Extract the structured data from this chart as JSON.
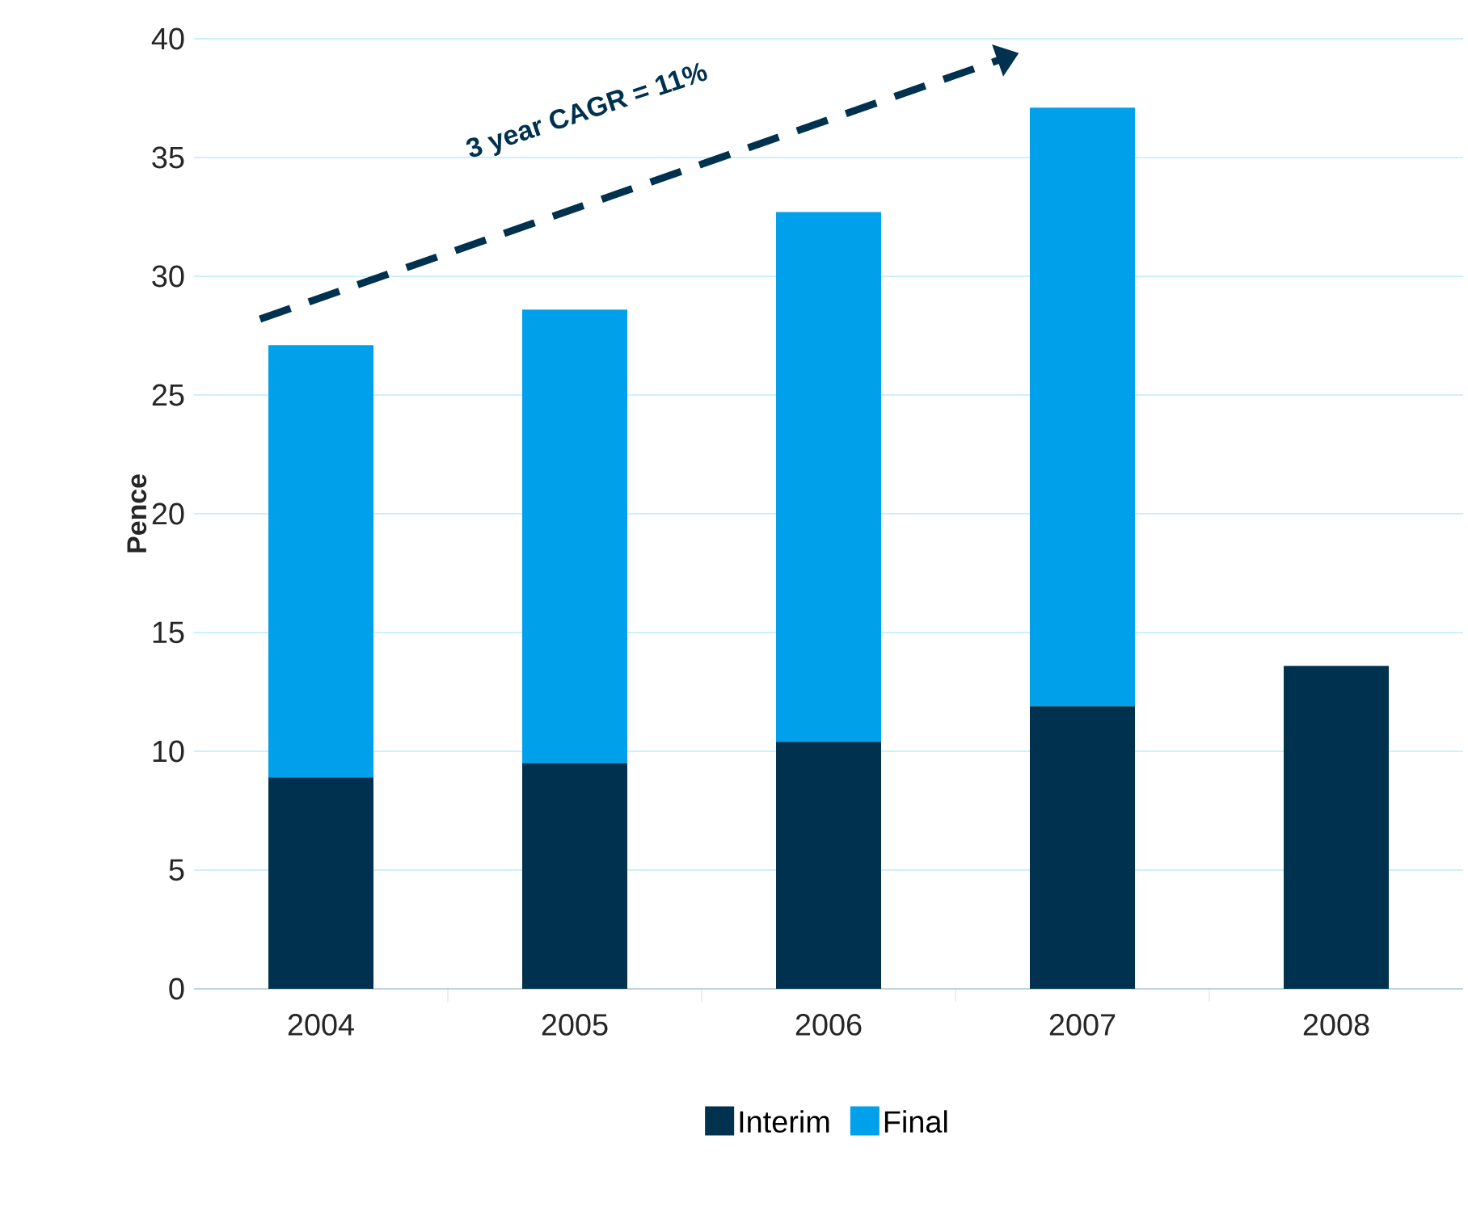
{
  "chart_data": {
    "type": "bar",
    "stacked": true,
    "ylabel": "Pence",
    "categories": [
      "2004",
      "2005",
      "2006",
      "2007",
      "2008"
    ],
    "series": [
      {
        "name": "Interim",
        "color": "#003250",
        "values": [
          8.9,
          9.5,
          10.4,
          11.9,
          13.6
        ]
      },
      {
        "name": "Final",
        "color": "#00a0ea",
        "values": [
          18.2,
          19.1,
          22.3,
          25.2,
          null
        ]
      }
    ],
    "ylim": [
      0,
      40
    ],
    "yticks": [
      0,
      5,
      10,
      15,
      20,
      25,
      30,
      35,
      40
    ],
    "grid": "y",
    "legend": "bottom",
    "annotations": [
      "3 year CAGR = 11%"
    ]
  }
}
